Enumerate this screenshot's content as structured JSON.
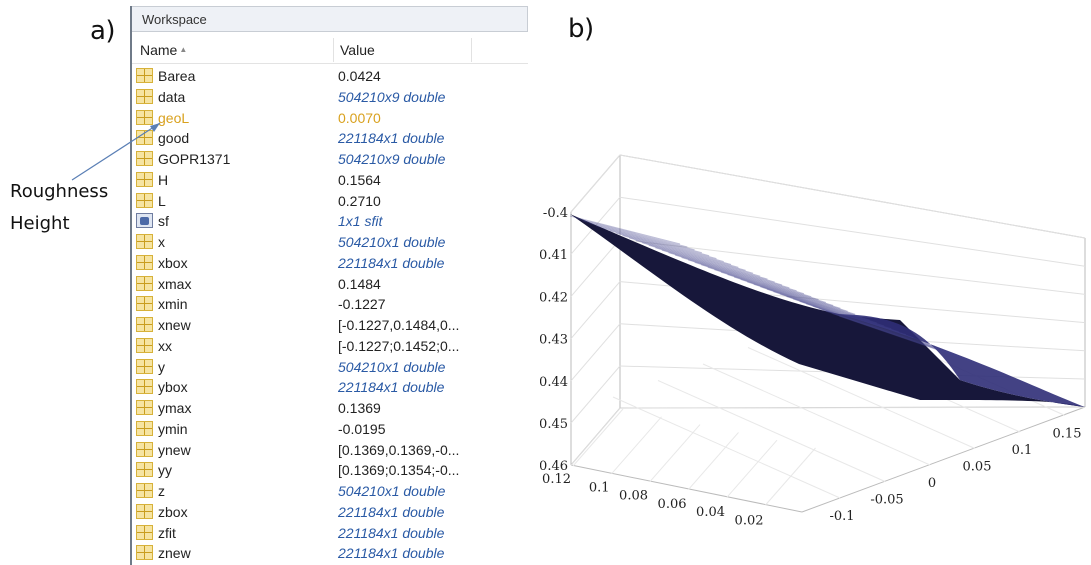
{
  "panels": {
    "a": "a)",
    "b": "b)"
  },
  "workspace": {
    "title": "Workspace",
    "columns": {
      "name": "Name",
      "value": "Value"
    },
    "rows": [
      {
        "name": "Barea",
        "value": "0.0424",
        "italic": false,
        "icon": "matrix-icon"
      },
      {
        "name": "data",
        "value": "504210x9 double",
        "italic": true,
        "icon": "matrix-icon"
      },
      {
        "name": "geoL",
        "value": "0.0070",
        "italic": false,
        "icon": "matrix-icon",
        "highlight": true
      },
      {
        "name": "good",
        "value": "221184x1 double",
        "italic": true,
        "icon": "matrix-icon"
      },
      {
        "name": "GOPR1371",
        "value": "504210x9 double",
        "italic": true,
        "icon": "matrix-icon"
      },
      {
        "name": "H",
        "value": "0.1564",
        "italic": false,
        "icon": "matrix-icon"
      },
      {
        "name": "L",
        "value": "0.2710",
        "italic": false,
        "icon": "matrix-icon"
      },
      {
        "name": "sf",
        "value": "1x1 sfit",
        "italic": true,
        "icon": "struct-icon"
      },
      {
        "name": "x",
        "value": "504210x1 double",
        "italic": true,
        "icon": "matrix-icon"
      },
      {
        "name": "xbox",
        "value": "221184x1 double",
        "italic": true,
        "icon": "matrix-icon"
      },
      {
        "name": "xmax",
        "value": "0.1484",
        "italic": false,
        "icon": "matrix-icon"
      },
      {
        "name": "xmin",
        "value": "-0.1227",
        "italic": false,
        "icon": "matrix-icon"
      },
      {
        "name": "xnew",
        "value": "[-0.1227,0.1484,0...",
        "italic": false,
        "icon": "matrix-icon"
      },
      {
        "name": "xx",
        "value": "[-0.1227;0.1452;0...",
        "italic": false,
        "icon": "matrix-icon"
      },
      {
        "name": "y",
        "value": "504210x1 double",
        "italic": true,
        "icon": "matrix-icon"
      },
      {
        "name": "ybox",
        "value": "221184x1 double",
        "italic": true,
        "icon": "matrix-icon"
      },
      {
        "name": "ymax",
        "value": "0.1369",
        "italic": false,
        "icon": "matrix-icon"
      },
      {
        "name": "ymin",
        "value": "-0.0195",
        "italic": false,
        "icon": "matrix-icon"
      },
      {
        "name": "ynew",
        "value": "[0.1369,0.1369,-0...",
        "italic": false,
        "icon": "matrix-icon"
      },
      {
        "name": "yy",
        "value": "[0.1369;0.1354;-0...",
        "italic": false,
        "icon": "matrix-icon"
      },
      {
        "name": "z",
        "value": "504210x1 double",
        "italic": true,
        "icon": "matrix-icon"
      },
      {
        "name": "zbox",
        "value": "221184x1 double",
        "italic": true,
        "icon": "matrix-icon"
      },
      {
        "name": "zfit",
        "value": "221184x1 double",
        "italic": true,
        "icon": "matrix-icon"
      },
      {
        "name": "znew",
        "value": "221184x1 double",
        "italic": true,
        "icon": "matrix-icon"
      }
    ]
  },
  "annotation": {
    "line1": "Roughness",
    "line2": "Height",
    "arrow_color": "#5a7fb5"
  },
  "colors": {
    "highlight": "#f8f57a",
    "surface_dark": "#141436",
    "surface_light": "#313077",
    "link_blue": "#2a5aa5"
  },
  "chart_data": {
    "type": "surface",
    "z_ticks": [
      "-0.4",
      "-0.41",
      "-0.42",
      "-0.43",
      "-0.44",
      "-0.45",
      "-0.46"
    ],
    "y_ticks": [
      "0.12",
      "0.1",
      "0.08",
      "0.06",
      "0.04",
      "0.02"
    ],
    "x_ticks": [
      "-0.1",
      "-0.05",
      "0",
      "0.05",
      "0.1",
      "0.15"
    ],
    "zlim": [
      -0.46,
      -0.4
    ],
    "grid": true
  }
}
